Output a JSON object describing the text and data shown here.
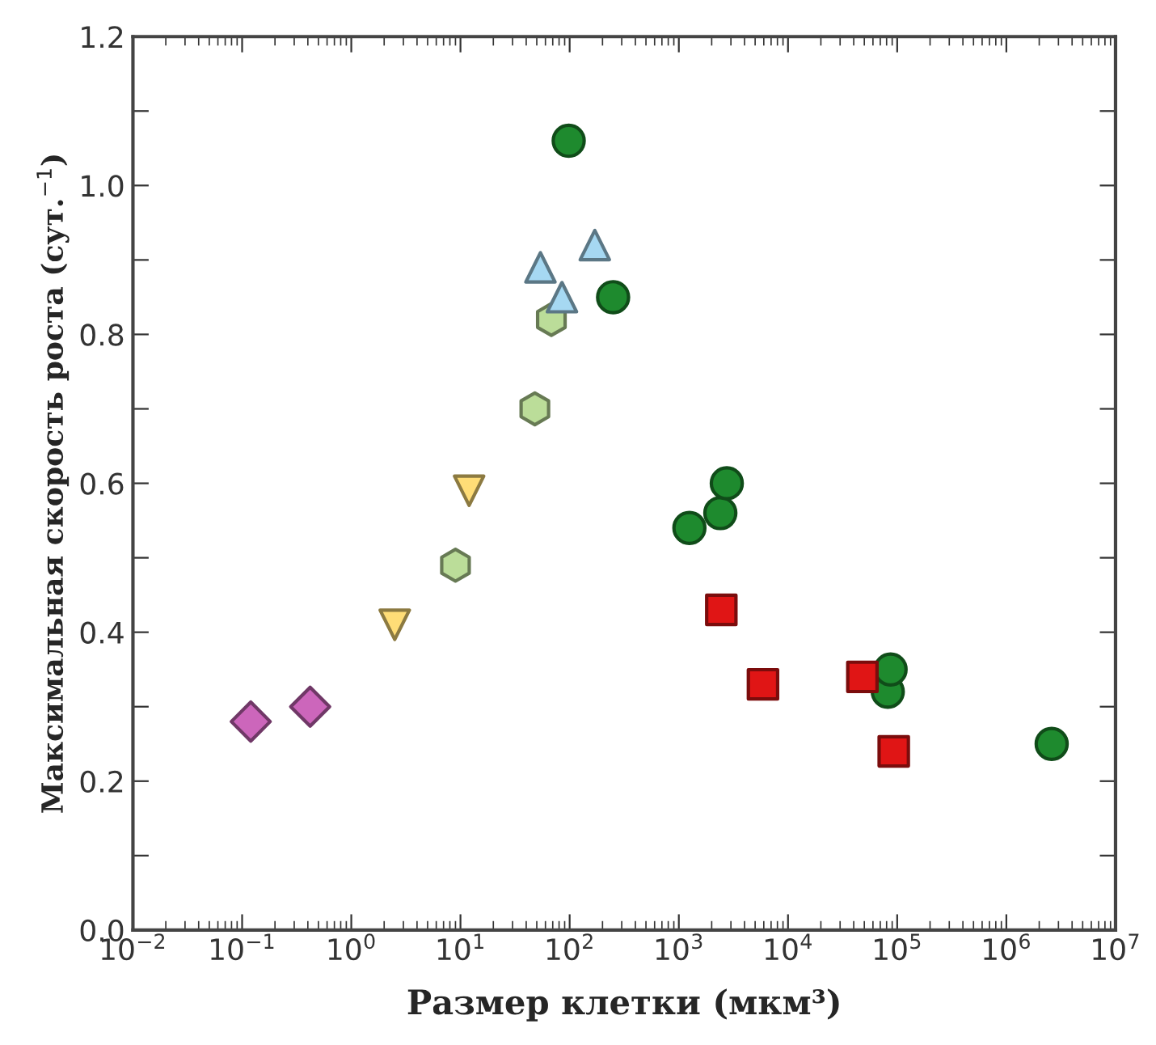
{
  "chart_data": {
    "type": "scatter",
    "xlabel": "Размер клетки (мкм³)",
    "ylabel": "Максимальная скорость роста (сут.$^{−1}$)",
    "log": "x",
    "xlim": [
      0.01,
      10000000
    ],
    "xticks": [
      {
        "value": 0.01,
        "label": "10$^{−2}$"
      },
      {
        "value": 0.1,
        "label": "10$^{−1}$"
      },
      {
        "value": 1,
        "label": "10$^{0}$"
      },
      {
        "value": 10,
        "label": "10$^{1}$"
      },
      {
        "value": 100,
        "label": "10$^{2}$"
      },
      {
        "value": 1000,
        "label": "10$^{3}$"
      },
      {
        "value": 10000,
        "label": "10$^{4}$"
      },
      {
        "value": 100000,
        "label": "10$^{5}$"
      },
      {
        "value": 1000000,
        "label": "10$^{6}$"
      },
      {
        "value": 10000000,
        "label": "10$^{7}$"
      }
    ],
    "ylim": [
      0,
      1.2
    ],
    "yticks": [
      {
        "value": 0,
        "label": "0.0"
      },
      {
        "value": 0.1,
        "label": null
      },
      {
        "value": 0.2,
        "label": "0.2"
      },
      {
        "value": 0.3,
        "label": null
      },
      {
        "value": 0.4,
        "label": "0.4"
      },
      {
        "value": 0.5,
        "label": null
      },
      {
        "value": 0.6,
        "label": "0.6"
      },
      {
        "value": 0.7,
        "label": null
      },
      {
        "value": 0.8,
        "label": "0.8"
      },
      {
        "value": 0.9,
        "label": null
      },
      {
        "value": 1.0,
        "label": "1.0"
      },
      {
        "value": 1.1,
        "label": null
      },
      {
        "value": 1.2,
        "label": "1.2"
      }
    ],
    "grid": false,
    "legend": false,
    "series": [
      {
        "marker": "diamond",
        "color": "#cc66bb",
        "x": [
          0.12,
          0.42
        ],
        "values": [
          0.28,
          0.3
        ]
      },
      {
        "marker": "triangle_down",
        "color": "#ffdd77",
        "x": [
          2.5,
          12
        ],
        "values": [
          0.41,
          0.59
        ]
      },
      {
        "color": "#bbdd99",
        "x": [
          9,
          48,
          68
        ],
        "values": [
          0.49,
          0.7,
          0.82
        ]
      },
      {
        "marker": "triangle",
        "color": "#a6d8f2",
        "x": [
          54,
          85,
          170
        ],
        "values": [
          0.89,
          0.85,
          0.92
        ]
      },
      {
        "marker": "circle",
        "color": "#1e8a2e",
        "x": [
          98,
          250,
          1250,
          2400,
          2750,
          82000,
          87000,
          2600000
        ],
        "values": [
          1.06,
          0.85,
          0.54,
          0.56,
          0.6,
          0.32,
          0.35,
          0.25
        ]
      },
      {
        "marker": "square",
        "color": "#e01515",
        "x": [
          2450,
          5900,
          48000,
          93000
        ],
        "values": [
          0.43,
          0.33,
          0.34,
          0.24
        ]
      }
    ]
  }
}
